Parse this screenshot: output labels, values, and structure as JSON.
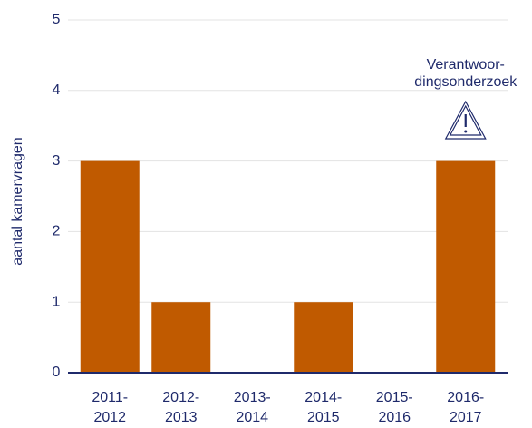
{
  "chart_data": {
    "type": "bar",
    "y_label": "aantal kamervragen",
    "categories": [
      "2011-2012",
      "2012-2013",
      "2013-2014",
      "2014-2015",
      "2015-2016",
      "2016-2017"
    ],
    "values": [
      3,
      1,
      0,
      1,
      0,
      3
    ],
    "color": "#c05a00",
    "ylim": [
      0,
      5
    ],
    "yticks": [
      0,
      1,
      2,
      3,
      4,
      5
    ],
    "grid": true,
    "annotation": {
      "lines": [
        "Verantwoor-",
        "dingsonderzoek"
      ],
      "category": 5
    }
  }
}
